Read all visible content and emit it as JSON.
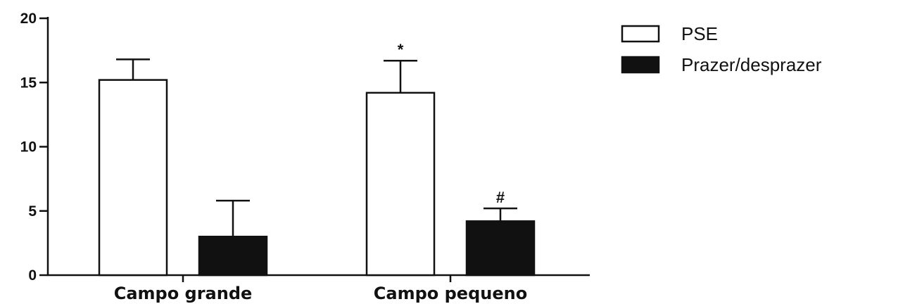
{
  "chart_data": {
    "type": "bar",
    "categories": [
      "Campo grande",
      "Campo pequeno"
    ],
    "series": [
      {
        "name": "PSE",
        "values": [
          15.2,
          14.2
        ],
        "errors": [
          1.6,
          2.5
        ],
        "color": "#ffffff"
      },
      {
        "name": "Prazer/desprazer",
        "values": [
          3.0,
          4.2
        ],
        "errors": [
          2.8,
          1.0
        ],
        "color": "#111111"
      }
    ],
    "annotations": [
      {
        "series": 0,
        "category": 1,
        "text": "*"
      },
      {
        "series": 1,
        "category": 1,
        "text": "#"
      }
    ],
    "y_ticks": [
      "0",
      "5",
      "10",
      "15",
      "20"
    ],
    "ylim": [
      0,
      20
    ],
    "grid": false,
    "legend_position": "top-right"
  }
}
